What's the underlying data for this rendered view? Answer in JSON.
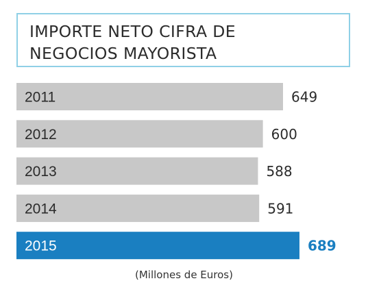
{
  "header": {
    "title_line1": "IMPORTE NETO CIFRA DE",
    "title_line2": "NEGOCIOS MAYORISTA"
  },
  "chart_data": {
    "type": "bar",
    "orientation": "horizontal",
    "title": "IMPORTE NETO CIFRA DE NEGOCIOS MAYORISTA",
    "categories": [
      "2011",
      "2012",
      "2013",
      "2014",
      "2015"
    ],
    "values": [
      649,
      600,
      588,
      591,
      689
    ],
    "value_labels": [
      "649",
      "600",
      "588",
      "591",
      "689"
    ],
    "highlight_category": "2015",
    "units": "(Millones de Euros)",
    "grid": false,
    "legend": "none",
    "colors": {
      "bar": "#c8c8c8",
      "highlight_bar": "#1a7fc1",
      "label": "#2b2b2b",
      "highlight_label": "#1a7fc1",
      "bar_text_highlight": "#ffffff"
    }
  }
}
